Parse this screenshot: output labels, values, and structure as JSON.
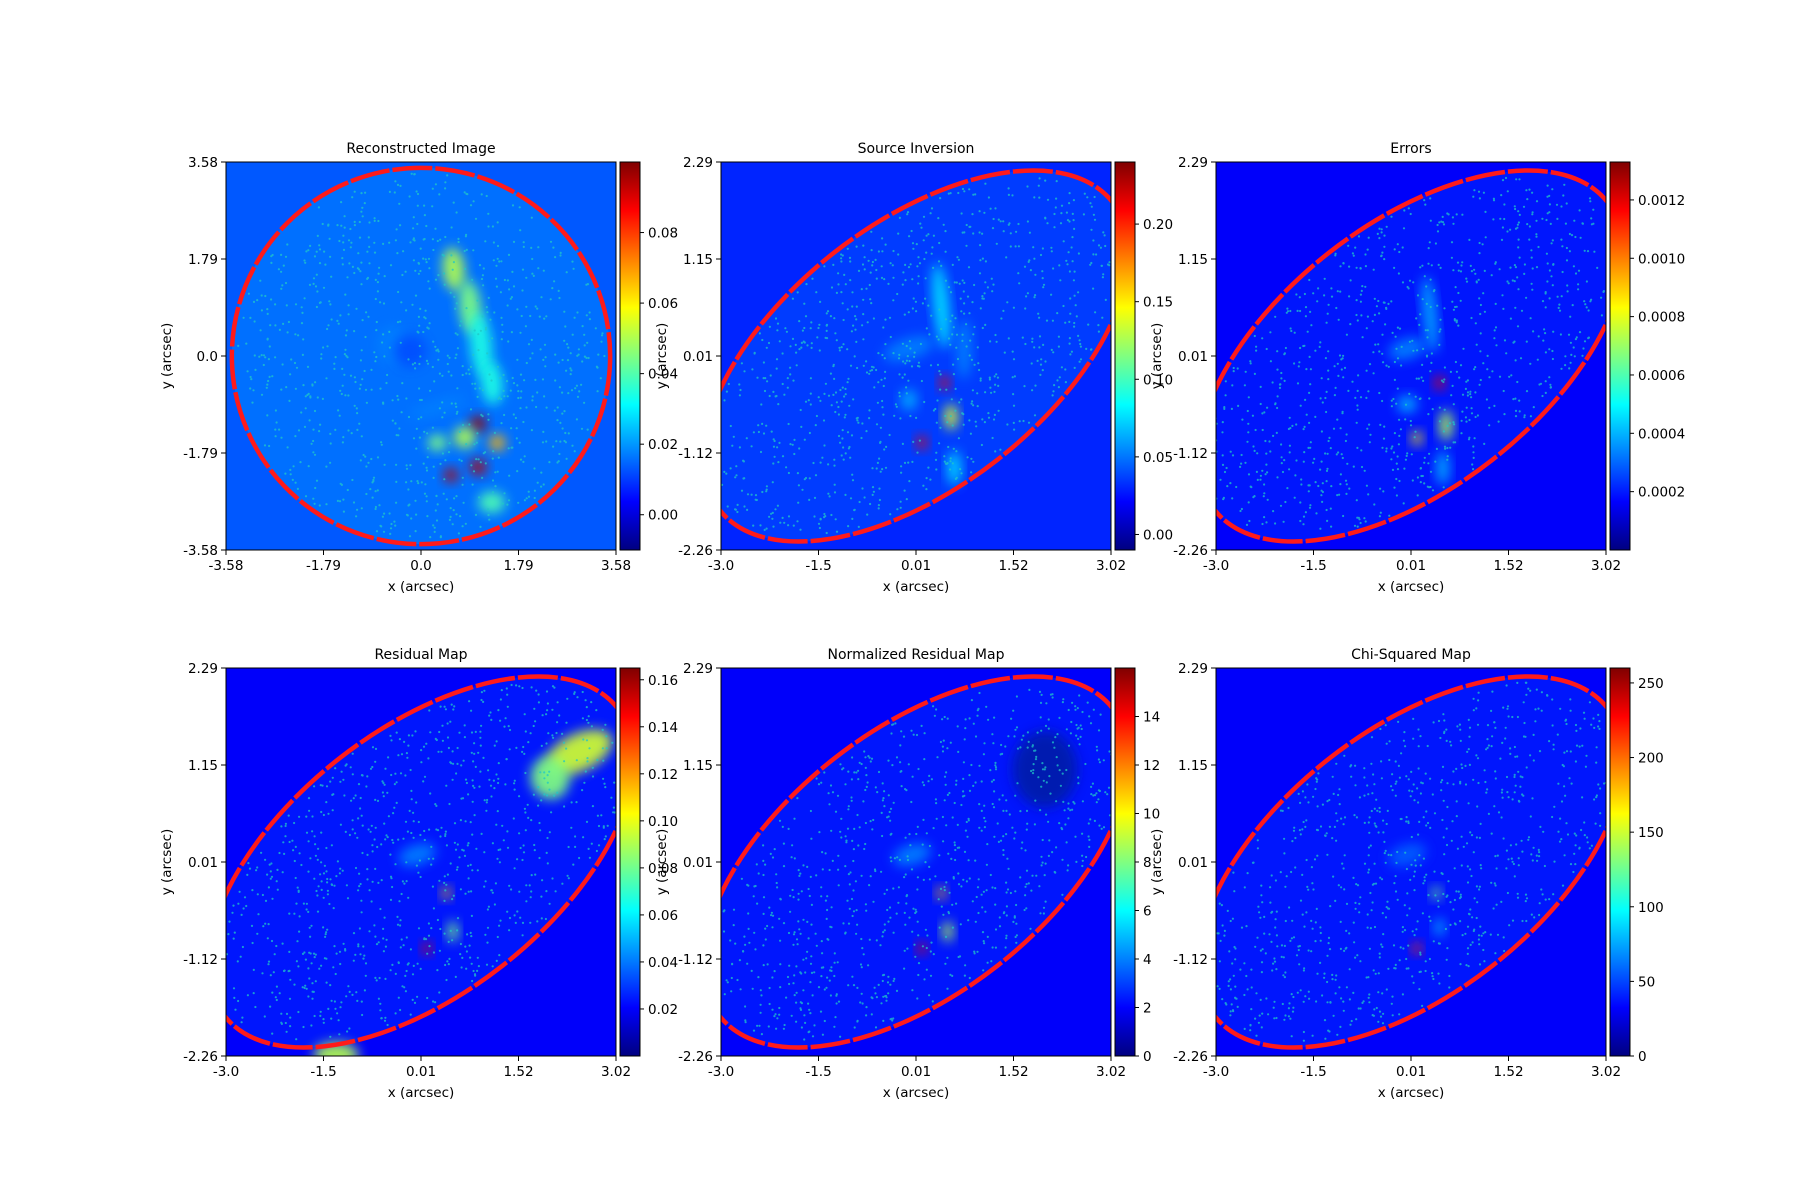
{
  "colormap": "jet",
  "colors": {
    "mask_border": "#ff1a1a",
    "pixel_centres": "#20c8c8",
    "background_low": "#00007f"
  },
  "chart_data": [
    {
      "type": "heatmap",
      "title": "Reconstructed Image",
      "xlabel": "x (arcsec)",
      "ylabel": "y (arcsec)",
      "xlim": [
        -3.58,
        3.58
      ],
      "ylim": [
        -3.58,
        3.58
      ],
      "xticks": [
        "-3.58",
        "-1.79",
        "0.0",
        "1.79",
        "3.58"
      ],
      "yticks": [
        "3.58",
        "1.79",
        "0.0",
        "-1.79",
        "-3.58"
      ],
      "colorbar": {
        "range": [
          -0.01,
          0.1
        ],
        "ticks": [
          0.0,
          0.02,
          0.04,
          0.06,
          0.08
        ],
        "tick_labels": [
          "0.00",
          "0.02",
          "0.04",
          "0.06",
          "0.08"
        ]
      },
      "mask_shape": "circle",
      "blobs": [
        [
          0.6,
          1.6,
          0.55,
          0.2,
          0.4,
          0.1
        ],
        [
          0.9,
          0.9,
          0.5,
          0.2,
          0.5,
          0.1
        ],
        [
          1.1,
          0.2,
          0.4,
          0.2,
          0.6,
          0.1
        ],
        [
          1.3,
          -0.5,
          0.4,
          0.2,
          0.4,
          0.1
        ],
        [
          -0.5,
          0.2,
          0.25,
          0.3,
          0.35,
          0.0
        ],
        [
          -0.2,
          0.1,
          0.2,
          0.3,
          0.3,
          0.0
        ],
        [
          1.05,
          -1.25,
          0.98,
          0.15,
          0.15,
          0.0
        ],
        [
          1.05,
          -2.05,
          0.95,
          0.15,
          0.15,
          0.0
        ],
        [
          0.55,
          -2.2,
          0.95,
          0.13,
          0.13,
          0.0
        ],
        [
          1.4,
          -1.6,
          0.7,
          0.15,
          0.15,
          0.0
        ],
        [
          0.3,
          -1.6,
          0.5,
          0.18,
          0.15,
          0.0
        ],
        [
          1.3,
          -2.7,
          0.45,
          0.25,
          0.2,
          0.0
        ],
        [
          0.8,
          -1.5,
          0.55,
          0.2,
          0.2,
          0.0
        ],
        [
          0.3,
          -0.95,
          0.25,
          0.55,
          0.12,
          0.3
        ]
      ]
    },
    {
      "type": "heatmap",
      "title": "Source Inversion",
      "xlabel": "x (arcsec)",
      "ylabel": "y (arcsec)",
      "xlim": [
        -3.0,
        3.02
      ],
      "ylim": [
        -2.26,
        2.29
      ],
      "xticks": [
        "-3.0",
        "-1.5",
        "0.01",
        "1.52",
        "3.02"
      ],
      "yticks": [
        "2.29",
        "1.15",
        "0.01",
        "-1.12",
        "-2.26"
      ],
      "colorbar": {
        "range": [
          -0.01,
          0.24
        ],
        "ticks": [
          0.0,
          0.05,
          0.1,
          0.15,
          0.2
        ],
        "tick_labels": [
          "0.00",
          "0.05",
          "0.10",
          "0.15",
          "0.20"
        ]
      },
      "mask_shape": "ellipse",
      "blobs": [
        [
          0.45,
          -0.3,
          0.9,
          0.08,
          0.08,
          0.0
        ],
        [
          0.1,
          -1.0,
          0.9,
          0.08,
          0.08,
          0.0
        ],
        [
          0.55,
          -0.7,
          0.6,
          0.1,
          0.15,
          0.0
        ],
        [
          0.4,
          0.6,
          0.35,
          0.12,
          0.5,
          0.1
        ],
        [
          -0.1,
          -0.5,
          0.3,
          0.12,
          0.12,
          0.0
        ],
        [
          0.6,
          -1.3,
          0.35,
          0.1,
          0.2,
          0.0
        ],
        [
          -0.1,
          0.1,
          0.25,
          0.4,
          0.12,
          0.3
        ],
        [
          0.75,
          0.1,
          0.25,
          0.12,
          0.35,
          0.0
        ]
      ]
    },
    {
      "type": "heatmap",
      "title": "Errors",
      "xlabel": "x (arcsec)",
      "ylabel": "y (arcsec)",
      "xlim": [
        -3.0,
        3.02
      ],
      "ylim": [
        -2.26,
        2.29
      ],
      "xticks": [
        "-3.0",
        "-1.5",
        "0.01",
        "1.52",
        "3.02"
      ],
      "yticks": [
        "2.29",
        "1.15",
        "0.01",
        "-1.12",
        "-2.26"
      ],
      "colorbar": {
        "range": [
          0.0,
          0.00133
        ],
        "ticks": [
          0.0002,
          0.0004,
          0.0006,
          0.0008,
          0.001,
          0.0012
        ],
        "tick_labels": [
          "0.0002",
          "0.0004",
          "0.0006",
          "0.0008",
          "0.0010",
          "0.0012"
        ]
      },
      "mask_shape": "ellipse",
      "blobs": [
        [
          0.45,
          -0.3,
          0.9,
          0.08,
          0.08,
          0.0
        ],
        [
          0.1,
          -0.95,
          0.65,
          0.08,
          0.08,
          0.0
        ],
        [
          0.55,
          -0.8,
          0.55,
          0.1,
          0.18,
          0.0
        ],
        [
          0.3,
          0.5,
          0.3,
          0.1,
          0.45,
          0.1
        ],
        [
          -0.05,
          -0.55,
          0.3,
          0.15,
          0.1,
          0.0
        ],
        [
          -0.05,
          0.1,
          0.25,
          0.3,
          0.12,
          0.3
        ],
        [
          0.5,
          -1.3,
          0.3,
          0.1,
          0.2,
          0.0
        ]
      ]
    },
    {
      "type": "heatmap",
      "title": "Residual Map",
      "xlabel": "x (arcsec)",
      "ylabel": "y (arcsec)",
      "xlim": [
        -3.0,
        3.02
      ],
      "ylim": [
        -2.26,
        2.29
      ],
      "xticks": [
        "-3.0",
        "-1.5",
        "0.01",
        "1.52",
        "3.02"
      ],
      "yticks": [
        "2.29",
        "1.15",
        "0.01",
        "-1.12",
        "-2.26"
      ],
      "colorbar": {
        "range": [
          0.0,
          0.165
        ],
        "ticks": [
          0.02,
          0.04,
          0.06,
          0.08,
          0.1,
          0.12,
          0.14,
          0.16
        ],
        "tick_labels": [
          "0.02",
          "0.04",
          "0.06",
          "0.08",
          "0.10",
          "0.12",
          "0.14",
          "0.16"
        ]
      },
      "mask_shape": "ellipse",
      "blobs": [
        [
          2.45,
          1.3,
          0.58,
          0.55,
          0.22,
          0.45
        ],
        [
          2.0,
          1.0,
          0.5,
          0.3,
          0.25,
          0.3
        ],
        [
          -1.3,
          -2.25,
          0.55,
          0.35,
          0.15,
          0.0
        ],
        [
          0.1,
          -1.0,
          0.9,
          0.07,
          0.07,
          0.0
        ],
        [
          0.4,
          -0.35,
          0.7,
          0.07,
          0.07,
          0.0
        ],
        [
          0.5,
          -0.8,
          0.5,
          0.08,
          0.12,
          0.0
        ],
        [
          -0.05,
          0.1,
          0.25,
          0.3,
          0.12,
          0.3
        ]
      ]
    },
    {
      "type": "heatmap",
      "title": "Normalized Residual Map",
      "xlabel": "x (arcsec)",
      "ylabel": "y (arcsec)",
      "xlim": [
        -3.0,
        3.02
      ],
      "ylim": [
        -2.26,
        2.29
      ],
      "xticks": [
        "-3.0",
        "-1.5",
        "0.01",
        "1.52",
        "3.02"
      ],
      "yticks": [
        "2.29",
        "1.15",
        "0.01",
        "-1.12",
        "-2.26"
      ],
      "colorbar": {
        "range": [
          0,
          16
        ],
        "ticks": [
          0,
          2,
          4,
          6,
          8,
          10,
          12,
          14
        ],
        "tick_labels": [
          "0",
          "2",
          "4",
          "6",
          "8",
          "10",
          "12",
          "14"
        ]
      },
      "mask_shape": "ellipse",
      "blobs": [
        [
          0.1,
          -1.0,
          0.9,
          0.07,
          0.07,
          0.0
        ],
        [
          0.4,
          -0.35,
          0.7,
          0.07,
          0.07,
          0.0
        ],
        [
          0.5,
          -0.8,
          0.55,
          0.08,
          0.12,
          0.0
        ],
        [
          -0.05,
          0.1,
          0.25,
          0.3,
          0.12,
          0.3
        ],
        [
          2.0,
          1.1,
          -0.15,
          0.5,
          0.45,
          0.0
        ]
      ]
    },
    {
      "type": "heatmap",
      "title": "Chi-Squared Map",
      "xlabel": "x (arcsec)",
      "ylabel": "y (arcsec)",
      "xlim": [
        -3.0,
        3.02
      ],
      "ylim": [
        -2.26,
        2.29
      ],
      "xticks": [
        "-3.0",
        "-1.5",
        "0.01",
        "1.52",
        "3.02"
      ],
      "yticks": [
        "2.29",
        "1.15",
        "0.01",
        "-1.12",
        "-2.26"
      ],
      "colorbar": {
        "range": [
          0,
          260
        ],
        "ticks": [
          0,
          50,
          100,
          150,
          200,
          250
        ],
        "tick_labels": [
          "0",
          "50",
          "100",
          "150",
          "200",
          "250"
        ]
      },
      "mask_shape": "ellipse",
      "blobs": [
        [
          0.1,
          -1.0,
          0.85,
          0.07,
          0.07,
          0.0
        ],
        [
          0.4,
          -0.35,
          0.5,
          0.07,
          0.07,
          0.0
        ],
        [
          0.45,
          -0.75,
          0.3,
          0.08,
          0.1,
          0.0
        ],
        [
          -0.05,
          0.1,
          0.22,
          0.3,
          0.12,
          0.3
        ]
      ]
    }
  ]
}
